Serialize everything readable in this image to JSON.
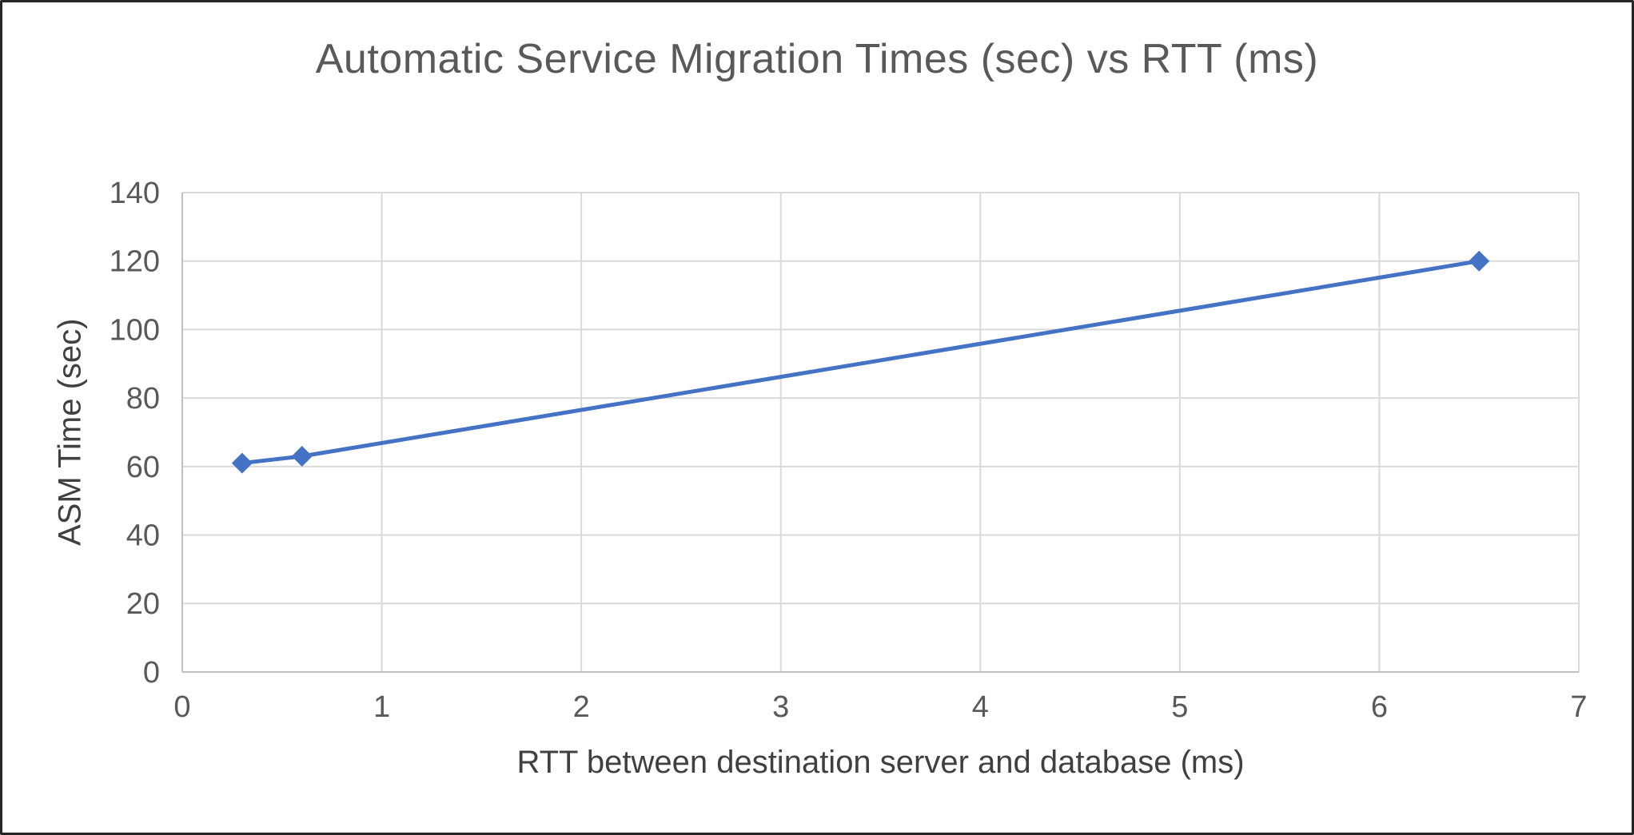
{
  "chart_data": {
    "type": "line",
    "title": "Automatic Service Migration Times (sec) vs RTT (ms)",
    "xlabel": "RTT between destination server and database (ms)",
    "ylabel": "ASM Time (sec)",
    "x": [
      0.3,
      0.6,
      6.5
    ],
    "y": [
      61,
      63,
      120
    ],
    "xlim": [
      0,
      7
    ],
    "ylim": [
      0,
      140
    ],
    "x_ticks": [
      0,
      1,
      2,
      3,
      4,
      5,
      6,
      7
    ],
    "y_ticks": [
      0,
      20,
      40,
      60,
      80,
      100,
      120,
      140
    ],
    "grid": true,
    "legend": false,
    "marker": "diamond",
    "colors": {
      "series": "#4472C4",
      "gridline": "#D9D9D9",
      "axis_line": "#BFBFBF",
      "tick_label": "#595959",
      "axis_title": "#404040",
      "title": "#595959"
    }
  }
}
